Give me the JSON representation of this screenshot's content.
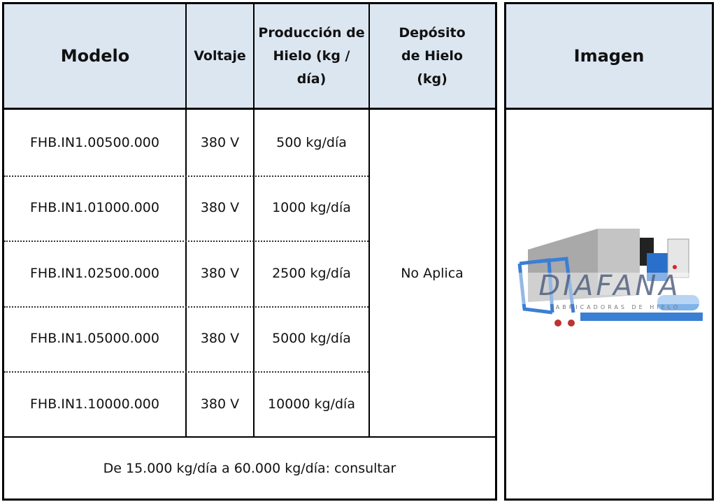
{
  "table": {
    "headers": [
      "Modelo",
      "Voltaje",
      "Producción de Hielo (kg / día)",
      "Depósito de Hielo (kg)"
    ],
    "rows": [
      {
        "modelo": "FHB.IN1.00500.000",
        "voltaje": "380 V",
        "produccion": "500 kg/día"
      },
      {
        "modelo": "FHB.IN1.01000.000",
        "voltaje": "380 V",
        "produccion": "1000 kg/día"
      },
      {
        "modelo": "FHB.IN1.02500.000",
        "voltaje": "380 V",
        "produccion": "2500 kg/día"
      },
      {
        "modelo": "FHB.IN1.05000.000",
        "voltaje": "380 V",
        "produccion": "5000 kg/día"
      },
      {
        "modelo": "FHB.IN1.10000.000",
        "voltaje": "380 V",
        "produccion": "10000 kg/día"
      }
    ],
    "deposito": "No Aplica",
    "footer": "De 15.000 kg/día a 60.000 kg/día: consultar"
  },
  "image_panel": {
    "header": "Imagen",
    "watermark": "DIAFANA",
    "watermark_sub": "FABRICADORAS DE HIELO"
  },
  "colors": {
    "header_bg": "#dce6f1",
    "machine_frame": "#3b7fd4"
  }
}
